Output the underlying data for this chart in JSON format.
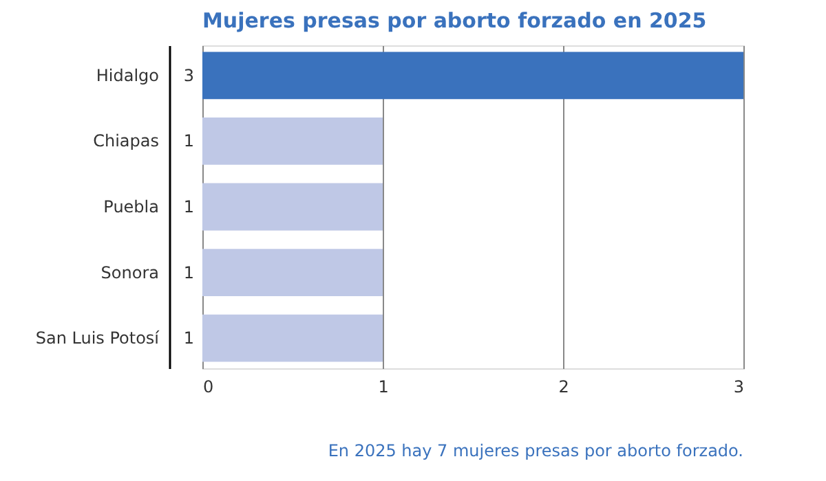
{
  "chart_data": {
    "type": "bar",
    "orientation": "horizontal",
    "title": "Mujeres presas por aborto forzado en 2025",
    "categories": [
      "Hidalgo",
      "Chiapas",
      "Puebla",
      "Sonora",
      "San Luis Potosí"
    ],
    "values": [
      3,
      1,
      1,
      1,
      1
    ],
    "colors": [
      "#3a72bd",
      "#bfc8e6",
      "#bfc8e6",
      "#bfc8e6",
      "#bfc8e6"
    ],
    "xlim": [
      0,
      3
    ],
    "xticks": [
      0,
      1,
      2,
      3
    ],
    "grid": "x",
    "data_labels": true,
    "annotations": [
      "En 2025 hay 7 mujeres presas por aborto forzado."
    ]
  }
}
